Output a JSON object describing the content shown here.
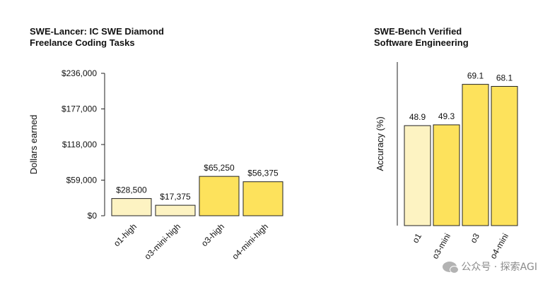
{
  "chart_data": [
    {
      "type": "bar",
      "title_lines": [
        "SWE-Lancer: IC SWE Diamond",
        "Freelance Coding Tasks"
      ],
      "ylabel": "Dollars earned",
      "ylim": [
        0,
        236000
      ],
      "yticks": [
        0,
        59000,
        118000,
        177000,
        236000
      ],
      "ytick_labels": [
        "$0",
        "$59,000",
        "$118,000",
        "$177,000",
        "$236,000"
      ],
      "categories": [
        "o1-high",
        "o3-mini-high",
        "o3-high",
        "o4-mini-high"
      ],
      "values": [
        28500,
        17375,
        65250,
        56375
      ],
      "value_labels": [
        "$28,500",
        "$17,375",
        "$65,250",
        "$56,375"
      ],
      "bar_colors": [
        "#fdf3c2",
        "#fdf3c2",
        "#fde25c",
        "#fde25c"
      ]
    },
    {
      "type": "bar",
      "title_lines": [
        "SWE-Bench Verified",
        "Software Engineering"
      ],
      "ylabel": "Accuracy (%)",
      "ylim": [
        0,
        80
      ],
      "categories": [
        "o1",
        "o3-mini",
        "o3",
        "o4-mini"
      ],
      "values": [
        48.9,
        49.3,
        69.1,
        68.1
      ],
      "value_labels": [
        "48.9",
        "49.3",
        "69.1",
        "68.1"
      ],
      "bar_colors": [
        "#fdf3c2",
        "#fde25c",
        "#fde25c",
        "#fde25c"
      ]
    }
  ],
  "watermark": {
    "text": "公众号 · 探索AGI",
    "icon": "wechat-icon"
  },
  "colors": {
    "bar_edge": "#222222",
    "axis": "#222222",
    "text": "#111111"
  }
}
